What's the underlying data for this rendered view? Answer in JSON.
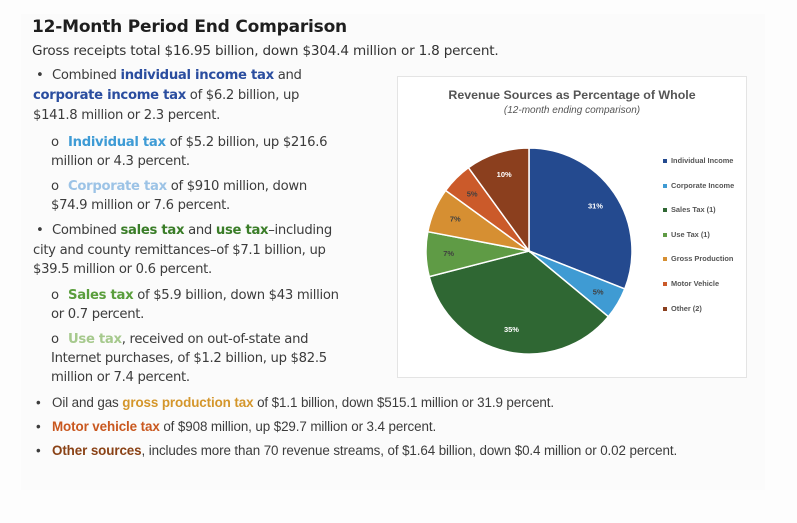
{
  "header": {
    "title": "12-Month Period End Comparison",
    "summary": "Gross receipts total $16.95 billion, down $304.4 million or 1.8 percent."
  },
  "bullets": {
    "income": {
      "bullet": "•",
      "p1": "Combined ",
      "kw1": "individual income tax",
      "p2": " and",
      "kw2": "corporate income tax",
      "p3": " of $6.2 billion, up",
      "p4": "$141.8 million or 2.3 percent.",
      "sub": [
        {
          "marker": "o",
          "kw": "Individual tax",
          "l1": " of $5.2 billion, up $216.6",
          "l2": "million or 4.3 percent."
        },
        {
          "marker": "o",
          "kw": "Corporate tax",
          "l1": " of $910 million, down",
          "l2": "$74.9 million or 7.6 percent."
        }
      ]
    },
    "sales": {
      "bullet": "•",
      "p1": "Combined ",
      "kw1": "sales tax",
      "p2": " and ",
      "kw2": "use tax",
      "p3": "–including",
      "p4": "city and county remittances–of $7.1 billion, up",
      "p5": "$39.5 million or 0.6 percent.",
      "sub": [
        {
          "marker": "o",
          "kw": "Sales tax",
          "l1": " of $5.9 billion, down $43 million",
          "l2": "or 0.7 percent."
        },
        {
          "marker": "o",
          "kw": "Use tax",
          "l1": ", received on out-of-state and",
          "l2": "Internet purchases, of $1.2 billion, up $82.5",
          "l3": "million or 7.4 percent."
        }
      ]
    },
    "gross": {
      "bullet": "•",
      "p1": "Oil and gas ",
      "kw": "gross production tax",
      "p2": " of $1.1 billion, down $515.1 million or 31.9 percent."
    },
    "motor": {
      "bullet": "•",
      "kw": "Motor vehicle tax",
      "p2": " of $908 million, up $29.7 million or 3.4 percent."
    },
    "other": {
      "bullet": "•",
      "kw": "Other sources",
      "p2": ", includes more than 70 revenue streams, of $1.64 billion, down $0.4 million or 0.02 percent."
    }
  },
  "chart_data": {
    "type": "pie",
    "title": "Revenue Sources as Percentage of Whole",
    "subtitle": "(12-month ending comparison)",
    "legend_position": "right",
    "start_angle": "12 o'clock, clockwise",
    "slices": [
      {
        "label": "Individual Income",
        "value": 31,
        "data_label": "31%",
        "color": "#244a8f",
        "label_color": "#ffffff"
      },
      {
        "label": "Corporate Income",
        "value": 5,
        "data_label": "5%",
        "color": "#3f9bd3",
        "label_color": "#404040"
      },
      {
        "label": "Sales Tax (1)",
        "value": 35,
        "data_label": "35%",
        "color": "#2f6733",
        "label_color": "#ffffff"
      },
      {
        "label": "Use Tax (1)",
        "value": 7,
        "data_label": "7%",
        "color": "#5f9b45",
        "label_color": "#404040"
      },
      {
        "label": "Gross Production",
        "value": 7,
        "data_label": "7%",
        "color": "#d68f32",
        "label_color": "#404040"
      },
      {
        "label": "Motor Vehicle",
        "value": 5,
        "data_label": "5%",
        "color": "#cb5a2a",
        "label_color": "#404040"
      },
      {
        "label": "Other (2)",
        "value": 10,
        "data_label": "10%",
        "color": "#8b3f1e",
        "label_color": "#ffffff"
      }
    ]
  }
}
